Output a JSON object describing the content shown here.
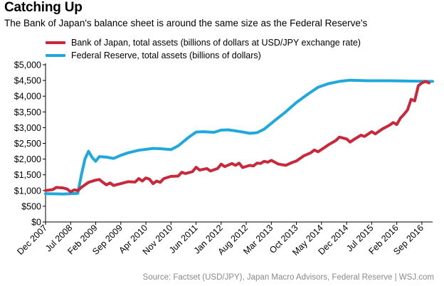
{
  "header": {
    "title": "Catching Up",
    "subtitle": "The Bank of Japan's balance sheet is around the same size as the Federal Reserve's"
  },
  "footer": {
    "source": "Source: Factset (USD/JPY), Japan Macro Advisors, Federal Reserve  |  WSJ.com"
  },
  "colors": {
    "boj": "#c8283a",
    "fed": "#1fa8dc",
    "axis": "#000000",
    "source_text": "#8a8a8a"
  },
  "chart_data": {
    "type": "line",
    "title": "Catching Up",
    "subtitle": "The Bank of Japan's balance sheet is around the same size as the Federal Reserve's",
    "xlabel": "",
    "ylabel": "",
    "x_axis": {
      "type": "date",
      "range": [
        "2007-12",
        "2016-12"
      ],
      "tick_labels": [
        "Dec 2007",
        "Jul 2008",
        "Feb 2009",
        "Sep 2009",
        "Apr 2010",
        "Nov 2010",
        "Jun 2011",
        "Jan 2012",
        "Aug 2012",
        "Mar 2013",
        "Oct 2013",
        "May 2014",
        "Dec 2014",
        "Jul 2015",
        "Feb 2016",
        "Sep 2016"
      ],
      "tick_dates": [
        "2007-12",
        "2008-07",
        "2009-02",
        "2009-09",
        "2010-04",
        "2010-11",
        "2011-06",
        "2012-01",
        "2012-08",
        "2013-03",
        "2013-10",
        "2014-05",
        "2014-12",
        "2015-07",
        "2016-02",
        "2016-09"
      ]
    },
    "y_axis": {
      "ylim": [
        0,
        5000
      ],
      "ticks": [
        0,
        500,
        1000,
        1500,
        2000,
        2500,
        3000,
        3500,
        4000,
        4500,
        5000
      ],
      "tick_labels": [
        "$0",
        "$500",
        "$1,000",
        "$1,500",
        "$2,000",
        "$2,500",
        "$3,000",
        "$3,500",
        "$4,000",
        "$4,500",
        "$5,000"
      ]
    },
    "grid": false,
    "legend_position": "top-left",
    "series": [
      {
        "name": "Bank of Japan, total assets (billions of dollars at USD/JPY exchange rate)",
        "color": "#c8283a",
        "points": [
          [
            "2007-12",
            1000
          ],
          [
            "2008-02",
            1030
          ],
          [
            "2008-03",
            1100
          ],
          [
            "2008-05",
            1080
          ],
          [
            "2008-06",
            1050
          ],
          [
            "2008-07",
            960
          ],
          [
            "2008-08",
            1020
          ],
          [
            "2008-09",
            1000
          ],
          [
            "2008-10",
            1100
          ],
          [
            "2008-11",
            1180
          ],
          [
            "2008-12",
            1260
          ],
          [
            "2009-02",
            1330
          ],
          [
            "2009-03",
            1350
          ],
          [
            "2009-04",
            1260
          ],
          [
            "2009-05",
            1180
          ],
          [
            "2009-06",
            1240
          ],
          [
            "2009-07",
            1160
          ],
          [
            "2009-09",
            1220
          ],
          [
            "2009-11",
            1280
          ],
          [
            "2010-01",
            1270
          ],
          [
            "2010-02",
            1380
          ],
          [
            "2010-03",
            1300
          ],
          [
            "2010-04",
            1400
          ],
          [
            "2010-05",
            1360
          ],
          [
            "2010-06",
            1220
          ],
          [
            "2010-07",
            1300
          ],
          [
            "2010-08",
            1260
          ],
          [
            "2010-09",
            1380
          ],
          [
            "2010-11",
            1450
          ],
          [
            "2011-01",
            1460
          ],
          [
            "2011-02",
            1580
          ],
          [
            "2011-03",
            1540
          ],
          [
            "2011-05",
            1600
          ],
          [
            "2011-06",
            1740
          ],
          [
            "2011-07",
            1650
          ],
          [
            "2011-09",
            1700
          ],
          [
            "2011-10",
            1620
          ],
          [
            "2011-12",
            1700
          ],
          [
            "2012-01",
            1840
          ],
          [
            "2012-02",
            1760
          ],
          [
            "2012-04",
            1860
          ],
          [
            "2012-05",
            1800
          ],
          [
            "2012-06",
            1870
          ],
          [
            "2012-07",
            1730
          ],
          [
            "2012-09",
            1800
          ],
          [
            "2012-10",
            1780
          ],
          [
            "2012-11",
            1870
          ],
          [
            "2012-12",
            1860
          ],
          [
            "2013-01",
            1930
          ],
          [
            "2013-02",
            1900
          ],
          [
            "2013-03",
            1960
          ],
          [
            "2013-05",
            1840
          ],
          [
            "2013-07",
            1800
          ],
          [
            "2013-09",
            1900
          ],
          [
            "2013-10",
            1940
          ],
          [
            "2013-12",
            2100
          ],
          [
            "2014-02",
            2200
          ],
          [
            "2014-03",
            2290
          ],
          [
            "2014-04",
            2230
          ],
          [
            "2014-06",
            2380
          ],
          [
            "2014-07",
            2460
          ],
          [
            "2014-09",
            2590
          ],
          [
            "2014-10",
            2700
          ],
          [
            "2014-12",
            2640
          ],
          [
            "2015-01",
            2540
          ],
          [
            "2015-02",
            2620
          ],
          [
            "2015-04",
            2760
          ],
          [
            "2015-05",
            2720
          ],
          [
            "2015-07",
            2870
          ],
          [
            "2015-08",
            2800
          ],
          [
            "2015-10",
            2960
          ],
          [
            "2015-12",
            3080
          ],
          [
            "2016-01",
            3160
          ],
          [
            "2016-02",
            3100
          ],
          [
            "2016-03",
            3300
          ],
          [
            "2016-04",
            3420
          ],
          [
            "2016-05",
            3560
          ],
          [
            "2016-06",
            3900
          ],
          [
            "2016-07",
            3850
          ],
          [
            "2016-08",
            4330
          ],
          [
            "2016-09",
            4420
          ],
          [
            "2016-10",
            4470
          ],
          [
            "2016-11",
            4420
          ]
        ]
      },
      {
        "name": "Federal Reserve, total assets (billions of dollars)",
        "color": "#1fa8dc",
        "points": [
          [
            "2007-12",
            900
          ],
          [
            "2008-02",
            895
          ],
          [
            "2008-05",
            890
          ],
          [
            "2008-07",
            900
          ],
          [
            "2008-09",
            910
          ],
          [
            "2008-10",
            1500
          ],
          [
            "2008-11",
            2000
          ],
          [
            "2008-12",
            2250
          ],
          [
            "2009-01",
            2050
          ],
          [
            "2009-02",
            1930
          ],
          [
            "2009-03",
            2080
          ],
          [
            "2009-05",
            2060
          ],
          [
            "2009-07",
            2020
          ],
          [
            "2009-09",
            2120
          ],
          [
            "2009-11",
            2200
          ],
          [
            "2010-02",
            2280
          ],
          [
            "2010-06",
            2340
          ],
          [
            "2010-08",
            2330
          ],
          [
            "2010-11",
            2300
          ],
          [
            "2011-01",
            2420
          ],
          [
            "2011-04",
            2700
          ],
          [
            "2011-06",
            2860
          ],
          [
            "2011-08",
            2870
          ],
          [
            "2011-11",
            2850
          ],
          [
            "2012-01",
            2920
          ],
          [
            "2012-03",
            2930
          ],
          [
            "2012-06",
            2880
          ],
          [
            "2012-09",
            2820
          ],
          [
            "2012-11",
            2840
          ],
          [
            "2013-01",
            2950
          ],
          [
            "2013-04",
            3230
          ],
          [
            "2013-07",
            3500
          ],
          [
            "2013-10",
            3800
          ],
          [
            "2014-01",
            4050
          ],
          [
            "2014-04",
            4280
          ],
          [
            "2014-07",
            4400
          ],
          [
            "2014-10",
            4470
          ],
          [
            "2015-01",
            4510
          ],
          [
            "2015-06",
            4490
          ],
          [
            "2015-12",
            4490
          ],
          [
            "2016-06",
            4480
          ],
          [
            "2016-12",
            4470
          ]
        ]
      }
    ]
  }
}
